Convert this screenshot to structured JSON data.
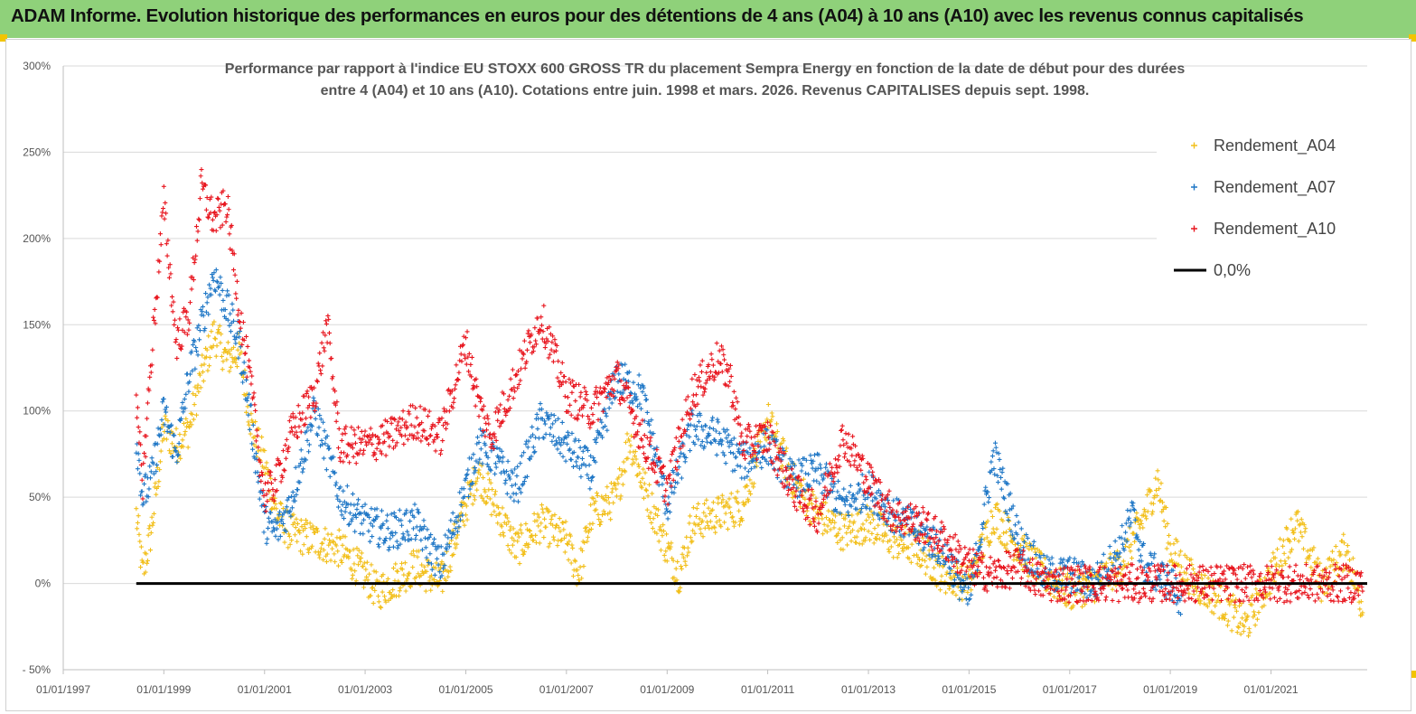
{
  "header": {
    "title": "ADAM Informe. Evolution historique des performances en euros pour des détentions de 4 ans (A04) à 10 ans (A10) avec les revenus connus capitalisés"
  },
  "colors": {
    "header_bg": "#8fd17a",
    "A04": "#f2bf1a",
    "A07": "#1f77c6",
    "A10": "#e8161f",
    "zero": "#000000",
    "grid": "#d9d9d9"
  },
  "chart_data": {
    "type": "scatter",
    "title_lines": [
      "Performance par rapport à l'indice EU STOXX 600 GROSS TR  du placement Sempra Energy en fonction de la date de début pour des durées",
      "entre 4 (A04) et 10 ans (A10). Cotations entre juin. 1998 et mars. 2026. Revenus CAPITALISES depuis sept. 1998."
    ],
    "xlabel": "",
    "ylabel": "",
    "x_tick_labels": [
      "01/01/1997",
      "01/01/1999",
      "01/01/2001",
      "01/01/2003",
      "01/01/2005",
      "01/01/2007",
      "01/01/2009",
      "01/01/2011",
      "01/01/2013",
      "01/01/2015",
      "01/01/2017",
      "01/01/2019",
      "01/01/2021"
    ],
    "x_range": [
      "1997-01-01",
      "2022-11-30"
    ],
    "y_tick_labels": [
      "300%",
      "250%",
      "200%",
      "150%",
      "100%",
      "50%",
      "0%",
      "- 50%"
    ],
    "ylim": [
      -0.5,
      3.0
    ],
    "grid": "horizontal",
    "legend_position": "top-right",
    "marker": "+",
    "legend": [
      {
        "key": "A04",
        "label": "Rendement_A04"
      },
      {
        "key": "A07",
        "label": "Rendement_A07"
      },
      {
        "key": "A10",
        "label": "Rendement_A10"
      },
      {
        "key": "zero",
        "label": "0,0%"
      }
    ],
    "series": [
      {
        "name": "Rendement_A04",
        "key": "A04",
        "x": [
          "1998-06-15",
          "1998-08-01",
          "1998-10-01",
          "1999-01-01",
          "1999-04-01",
          "1999-07-01",
          "1999-10-01",
          "2000-01-01",
          "2000-04-01",
          "2000-07-01",
          "2000-10-01",
          "2001-01-01",
          "2001-04-01",
          "2001-07-01",
          "2002-01-01",
          "2002-07-01",
          "2003-01-01",
          "2003-04-01",
          "2003-07-01",
          "2004-01-01",
          "2004-07-01",
          "2005-01-01",
          "2005-04-01",
          "2005-07-01",
          "2006-01-01",
          "2006-07-01",
          "2007-01-01",
          "2007-04-01",
          "2007-07-01",
          "2008-01-01",
          "2008-04-01",
          "2008-07-01",
          "2009-01-01",
          "2009-04-01",
          "2009-07-01",
          "2010-01-01",
          "2010-07-01",
          "2011-01-01",
          "2011-07-01",
          "2012-01-01",
          "2012-07-01",
          "2013-01-01",
          "2013-07-01",
          "2014-01-01",
          "2014-07-01",
          "2015-01-01",
          "2015-07-01",
          "2016-01-01",
          "2016-07-01",
          "2017-01-01",
          "2017-07-01",
          "2018-01-01",
          "2018-07-01",
          "2018-10-01",
          "2019-01-01",
          "2019-07-01",
          "2020-01-01",
          "2020-07-01",
          "2021-01-01",
          "2021-07-01",
          "2022-01-01",
          "2022-04-01",
          "2022-07-01",
          "2022-11-01"
        ],
        "y": [
          0.4,
          0.05,
          0.3,
          0.9,
          0.8,
          0.9,
          1.2,
          1.45,
          1.3,
          1.35,
          0.9,
          0.7,
          0.4,
          0.3,
          0.25,
          0.2,
          0.05,
          -0.05,
          0.0,
          0.1,
          0.0,
          0.45,
          0.65,
          0.5,
          0.2,
          0.35,
          0.25,
          0.05,
          0.4,
          0.5,
          0.85,
          0.6,
          0.2,
          0.05,
          0.35,
          0.4,
          0.45,
          0.95,
          0.6,
          0.4,
          0.3,
          0.35,
          0.25,
          0.2,
          0.05,
          0.0,
          0.4,
          0.2,
          0.05,
          -0.05,
          0.0,
          0.1,
          0.4,
          0.6,
          0.2,
          0.0,
          -0.1,
          -0.25,
          0.05,
          0.35,
          0.0,
          0.1,
          0.2,
          -0.15
        ]
      },
      {
        "name": "Rendement_A07",
        "key": "A07",
        "x": [
          "1998-06-15",
          "1998-08-01",
          "1998-10-01",
          "1999-01-01",
          "1999-04-01",
          "1999-07-01",
          "1999-10-01",
          "2000-01-01",
          "2000-04-01",
          "2000-07-01",
          "2000-10-01",
          "2001-01-01",
          "2001-04-01",
          "2001-07-01",
          "2002-01-01",
          "2002-04-01",
          "2002-07-01",
          "2003-01-01",
          "2003-07-01",
          "2004-01-01",
          "2004-07-01",
          "2005-01-01",
          "2005-04-01",
          "2005-07-01",
          "2006-01-01",
          "2006-07-01",
          "2007-01-01",
          "2007-07-01",
          "2008-01-01",
          "2008-07-01",
          "2009-01-01",
          "2009-07-01",
          "2010-01-01",
          "2010-07-01",
          "2011-01-01",
          "2011-07-01",
          "2012-01-01",
          "2012-07-01",
          "2013-01-01",
          "2013-07-01",
          "2014-01-01",
          "2014-07-01",
          "2015-01-01",
          "2015-07-01",
          "2016-01-01",
          "2016-07-01",
          "2017-01-01",
          "2017-07-01",
          "2018-01-01",
          "2018-04-01",
          "2018-07-01",
          "2019-01-01",
          "2019-04-01"
        ],
        "y": [
          0.85,
          0.5,
          0.6,
          1.0,
          0.75,
          1.2,
          1.5,
          1.8,
          1.6,
          1.4,
          0.9,
          0.35,
          0.3,
          0.45,
          1.0,
          0.75,
          0.5,
          0.35,
          0.3,
          0.35,
          0.1,
          0.55,
          0.8,
          0.75,
          0.55,
          0.95,
          0.8,
          0.65,
          1.2,
          1.1,
          0.45,
          0.9,
          0.85,
          0.7,
          0.8,
          0.6,
          0.65,
          0.45,
          0.55,
          0.4,
          0.3,
          0.2,
          -0.1,
          0.75,
          0.25,
          0.05,
          0.05,
          0.0,
          0.2,
          0.4,
          0.1,
          0.0,
          -0.1
        ]
      },
      {
        "name": "Rendement_A10",
        "key": "A10",
        "x": [
          "1998-06-15",
          "1998-08-01",
          "1998-10-01",
          "1999-01-01",
          "1999-04-01",
          "1999-07-01",
          "1999-10-01",
          "2000-01-01",
          "2000-04-01",
          "2000-07-01",
          "2000-10-01",
          "2001-01-01",
          "2001-04-01",
          "2001-07-01",
          "2002-01-01",
          "2002-04-01",
          "2002-07-01",
          "2003-01-01",
          "2003-07-01",
          "2004-01-01",
          "2004-07-01",
          "2005-01-01",
          "2005-04-01",
          "2005-07-01",
          "2006-01-01",
          "2006-07-01",
          "2007-01-01",
          "2007-07-01",
          "2008-01-01",
          "2008-07-01",
          "2009-01-01",
          "2009-07-01",
          "2010-01-01",
          "2010-04-01",
          "2010-07-01",
          "2011-01-01",
          "2011-07-01",
          "2012-01-01",
          "2012-07-01",
          "2013-01-01",
          "2013-07-01",
          "2014-01-01",
          "2014-07-01",
          "2015-01-01",
          "2015-07-01",
          "2016-01-01",
          "2016-04-01",
          "2016-07-01",
          "2017-01-01",
          "2018-01-01",
          "2019-01-01",
          "2020-01-01",
          "2021-01-01",
          "2022-01-01",
          "2022-11-01"
        ],
        "y": [
          1.0,
          0.6,
          1.3,
          2.2,
          1.4,
          1.55,
          2.3,
          2.1,
          2.2,
          1.6,
          1.1,
          0.5,
          0.6,
          0.85,
          1.1,
          1.5,
          0.8,
          0.8,
          0.85,
          0.95,
          0.85,
          1.4,
          1.05,
          0.85,
          1.2,
          1.55,
          1.1,
          1.0,
          1.2,
          0.85,
          0.55,
          1.1,
          1.3,
          1.2,
          0.8,
          0.85,
          0.55,
          0.4,
          0.85,
          0.6,
          0.4,
          0.35,
          0.25,
          0.1,
          0.05,
          0.1,
          0.05,
          0.0,
          0.0,
          0.0,
          0.0,
          0.0,
          0.0,
          0.0,
          0.0
        ]
      },
      {
        "name": "0,0%",
        "key": "zero",
        "x": [
          "1998-06-15",
          "2022-11-30"
        ],
        "y": [
          0.0,
          0.0
        ]
      }
    ]
  }
}
